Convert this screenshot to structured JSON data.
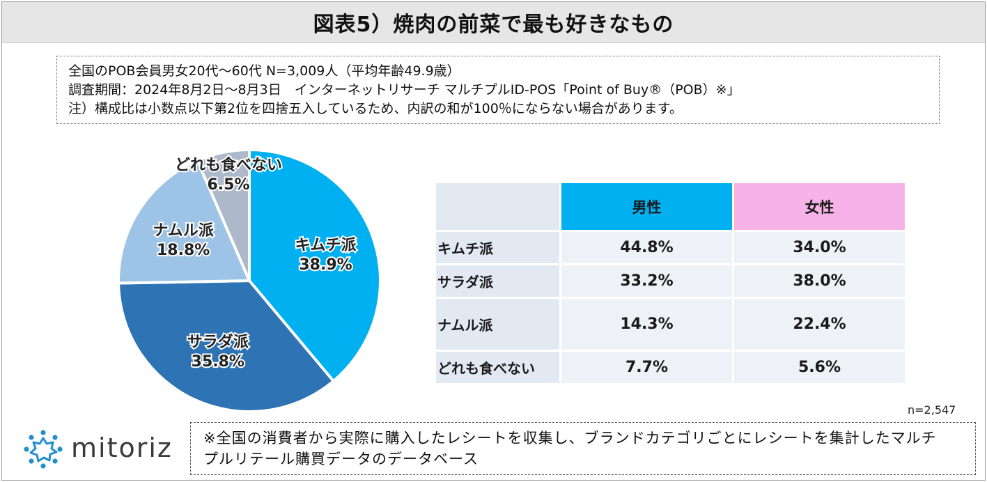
{
  "title": "図表5）焼肉の前菜で最も好きなもの",
  "info": {
    "line1": "全国のPOB会員男女20代～60代 N=3,009人（平均年齢49.9歳）",
    "line2": "調査期間：2024年8月2日～8月3日　インターネットリサーチ マルチプルID-POS「Point of Buy®（POB）※」",
    "line3": "注）構成比は小数点以下第2位を四捨五入しているため、内訳の和が100％にならない場合があります。"
  },
  "chart_data": [
    {
      "type": "pie",
      "categories": [
        "キムチ派",
        "サラダ派",
        "ナムル派",
        "どれも食べない"
      ],
      "values": [
        38.9,
        35.8,
        18.8,
        6.5
      ],
      "labels": [
        "38.9%",
        "35.8%",
        "18.8%",
        "6.5%"
      ],
      "colors": [
        "#00b0f0",
        "#2e74b5",
        "#9dc3e6",
        "#adb9ca"
      ]
    },
    {
      "type": "table",
      "columns": [
        "男性",
        "女性"
      ],
      "column_colors": [
        "#00b0f0",
        "#f7b3e8"
      ],
      "rows": [
        {
          "label": "キムチ派",
          "values": [
            "44.8%",
            "34.0%"
          ]
        },
        {
          "label": "サラダ派",
          "values": [
            "33.2%",
            "38.0%"
          ]
        },
        {
          "label": "ナムル派",
          "values": [
            "14.3%",
            "22.4%"
          ]
        },
        {
          "label": "どれも食べない",
          "values": [
            "7.7%",
            "5.6%"
          ]
        }
      ]
    }
  ],
  "sample_note": "n=2,547",
  "footnote": {
    "line1": "※全国の消費者から実際に購入したレシートを収集し、ブランドカテゴリごとにレシートを集計したマルチ",
    "line2": "プルリテール購買データのデータベース"
  },
  "logo": {
    "text": "mitoriz",
    "icon": "sun-burst-logo-icon",
    "color": "#1f8fd0"
  }
}
